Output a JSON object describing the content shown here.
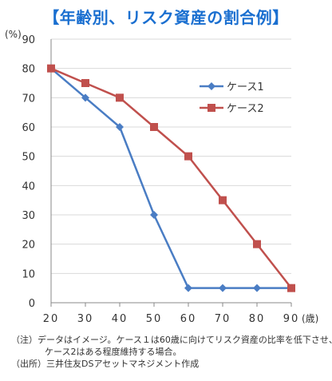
{
  "chart_data": {
    "type": "line",
    "title": "【年齢別、リスク資産の割合例】",
    "ylabel": "(%)",
    "xlabel_unit": "(歳)",
    "x": [
      20,
      30,
      40,
      50,
      60,
      70,
      80,
      90
    ],
    "ylim": [
      0,
      90
    ],
    "xlim": [
      20,
      90
    ],
    "yticks": [
      0,
      10,
      20,
      30,
      40,
      50,
      60,
      70,
      80,
      90
    ],
    "grid": true,
    "legend_position": "top-right",
    "series": [
      {
        "name": "ケース1",
        "color": "#4a7dc4",
        "marker": "diamond",
        "values": [
          80,
          70,
          60,
          30,
          5,
          5,
          5,
          5
        ]
      },
      {
        "name": "ケース2",
        "color": "#c0504d",
        "marker": "square",
        "values": [
          80,
          75,
          70,
          60,
          50,
          35,
          20,
          5
        ]
      }
    ]
  },
  "notes": {
    "line1": "（注）データはイメージ。ケース１は60歳に向けてリスク資産の比率を低下させ、",
    "line2": "ケース2はある程度維持する場合。",
    "line3": "（出所）三井住友DSアセットマネジメント作成"
  }
}
